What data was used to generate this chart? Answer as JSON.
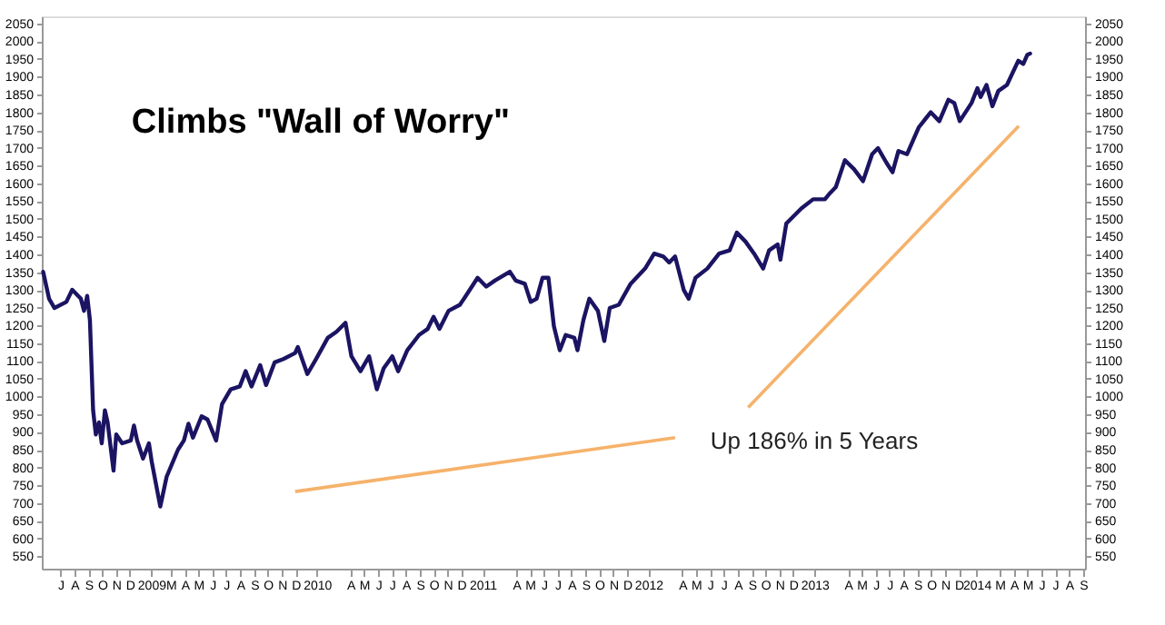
{
  "chart_data": {
    "type": "line",
    "title": "Climbs \"Wall of Worry\"",
    "xlim": [
      "2008-06-05",
      "2014-09-20"
    ],
    "xticks": [
      {
        "value": "2008-07-16",
        "label": "J"
      },
      {
        "value": "2008-08-16",
        "label": "A"
      },
      {
        "value": "2008-09-16",
        "label": "S"
      },
      {
        "value": "2008-10-16",
        "label": "O"
      },
      {
        "value": "2008-11-16",
        "label": "N"
      },
      {
        "value": "2008-12-16",
        "label": "D"
      },
      {
        "value": "2009-02-01",
        "label": "2009"
      },
      {
        "value": "2009-03-16",
        "label": "M"
      },
      {
        "value": "2009-04-16",
        "label": "A"
      },
      {
        "value": "2009-05-16",
        "label": "M"
      },
      {
        "value": "2009-06-16",
        "label": "J"
      },
      {
        "value": "2009-07-16",
        "label": "J"
      },
      {
        "value": "2009-08-16",
        "label": "A"
      },
      {
        "value": "2009-09-16",
        "label": "S"
      },
      {
        "value": "2009-10-16",
        "label": "O"
      },
      {
        "value": "2009-11-16",
        "label": "N"
      },
      {
        "value": "2009-12-16",
        "label": "D"
      },
      {
        "value": "2010-02-01",
        "label": "2010"
      },
      {
        "value": "2010-04-16",
        "label": "A"
      },
      {
        "value": "2010-05-16",
        "label": "M"
      },
      {
        "value": "2010-06-16",
        "label": "J"
      },
      {
        "value": "2010-07-16",
        "label": "J"
      },
      {
        "value": "2010-08-16",
        "label": "A"
      },
      {
        "value": "2010-09-16",
        "label": "S"
      },
      {
        "value": "2010-10-16",
        "label": "O"
      },
      {
        "value": "2010-11-16",
        "label": "N"
      },
      {
        "value": "2010-12-16",
        "label": "D"
      },
      {
        "value": "2011-02-01",
        "label": "2011"
      },
      {
        "value": "2011-04-16",
        "label": "A"
      },
      {
        "value": "2011-05-16",
        "label": "M"
      },
      {
        "value": "2011-06-16",
        "label": "J"
      },
      {
        "value": "2011-07-16",
        "label": "J"
      },
      {
        "value": "2011-08-16",
        "label": "A"
      },
      {
        "value": "2011-09-16",
        "label": "S"
      },
      {
        "value": "2011-10-16",
        "label": "O"
      },
      {
        "value": "2011-11-16",
        "label": "N"
      },
      {
        "value": "2011-12-16",
        "label": "D"
      },
      {
        "value": "2012-02-01",
        "label": "2012"
      },
      {
        "value": "2012-04-16",
        "label": "A"
      },
      {
        "value": "2012-05-16",
        "label": "M"
      },
      {
        "value": "2012-06-16",
        "label": "J"
      },
      {
        "value": "2012-07-16",
        "label": "J"
      },
      {
        "value": "2012-08-16",
        "label": "A"
      },
      {
        "value": "2012-09-16",
        "label": "S"
      },
      {
        "value": "2012-10-16",
        "label": "O"
      },
      {
        "value": "2012-11-16",
        "label": "N"
      },
      {
        "value": "2012-12-16",
        "label": "D"
      },
      {
        "value": "2013-02-01",
        "label": "2013"
      },
      {
        "value": "2013-04-16",
        "label": "A"
      },
      {
        "value": "2013-05-16",
        "label": "M"
      },
      {
        "value": "2013-06-16",
        "label": "J"
      },
      {
        "value": "2013-07-16",
        "label": "J"
      },
      {
        "value": "2013-08-16",
        "label": "A"
      },
      {
        "value": "2013-09-16",
        "label": "S"
      },
      {
        "value": "2013-10-16",
        "label": "O"
      },
      {
        "value": "2013-11-16",
        "label": "N"
      },
      {
        "value": "2013-12-16",
        "label": "D"
      },
      {
        "value": "2014-01-24",
        "label": "2014"
      },
      {
        "value": "2014-03-16",
        "label": "M"
      },
      {
        "value": "2014-04-16",
        "label": "A"
      },
      {
        "value": "2014-05-16",
        "label": "M"
      },
      {
        "value": "2014-06-16",
        "label": "J"
      },
      {
        "value": "2014-07-16",
        "label": "J"
      },
      {
        "value": "2014-08-16",
        "label": "A"
      },
      {
        "value": "2014-09-16",
        "label": "S"
      }
    ],
    "ylim": [
      515,
      2070
    ],
    "yticks": [
      550,
      600,
      650,
      700,
      750,
      800,
      850,
      900,
      950,
      1000,
      1050,
      1100,
      1150,
      1200,
      1250,
      1300,
      1350,
      1400,
      1450,
      1500,
      1550,
      1600,
      1650,
      1700,
      1750,
      1800,
      1850,
      1900,
      1950,
      2000,
      2050
    ],
    "y2lim": [
      515,
      2070
    ],
    "y2ticks": [
      550,
      600,
      650,
      700,
      750,
      800,
      850,
      900,
      950,
      1000,
      1050,
      1100,
      1150,
      1200,
      1250,
      1300,
      1350,
      1400,
      1450,
      1500,
      1550,
      1600,
      1650,
      1700,
      1750,
      1800,
      1850,
      1900,
      1950,
      2000,
      2050
    ],
    "annotations": [
      "Up 186% in 5 Years"
    ],
    "series": [
      {
        "color": "#1b1462",
        "x": [
          "2008-06-08",
          "2008-06-21",
          "2008-07-03",
          "2008-07-29",
          "2008-08-11",
          "2008-08-30",
          "2008-09-06",
          "2008-09-13",
          "2008-09-19",
          "2008-09-26",
          "2008-10-02",
          "2008-10-09",
          "2008-10-15",
          "2008-10-22",
          "2008-10-28",
          "2008-11-10",
          "2008-11-16",
          "2008-11-29",
          "2008-12-18",
          "2008-12-25",
          "2009-01-01",
          "2009-01-14",
          "2009-01-27",
          "2009-02-02",
          "2009-02-21",
          "2009-03-07",
          "2009-04-01",
          "2009-04-14",
          "2009-04-24",
          "2009-05-04",
          "2009-05-23",
          "2009-06-05",
          "2009-06-24",
          "2009-07-07",
          "2009-07-26",
          "2009-08-15",
          "2009-08-28",
          "2009-09-10",
          "2009-09-29",
          "2009-10-12",
          "2009-10-31",
          "2009-11-19",
          "2009-12-15",
          "2009-12-21",
          "2010-01-11",
          "2010-01-30",
          "2010-02-25",
          "2010-03-16",
          "2010-04-05",
          "2010-04-18",
          "2010-05-08",
          "2010-05-27",
          "2010-06-13",
          "2010-06-28",
          "2010-07-17",
          "2010-07-30",
          "2010-08-19",
          "2010-09-14",
          "2010-10-03",
          "2010-10-16",
          "2010-10-29",
          "2010-11-18",
          "2010-12-13",
          "2010-12-26",
          "2011-01-21",
          "2011-02-09",
          "2011-02-28",
          "2011-04-02",
          "2011-04-15",
          "2011-05-05",
          "2011-05-18",
          "2011-05-31",
          "2011-06-13",
          "2011-06-26",
          "2011-07-08",
          "2011-07-21",
          "2011-08-03",
          "2011-08-22",
          "2011-08-29",
          "2011-09-11",
          "2011-09-24",
          "2011-10-13",
          "2011-10-27",
          "2011-11-08",
          "2011-11-28",
          "2011-12-24",
          "2012-01-25",
          "2012-02-14",
          "2012-03-05",
          "2012-03-18",
          "2012-03-31",
          "2012-04-19",
          "2012-04-30",
          "2012-05-15",
          "2012-06-10",
          "2012-07-06",
          "2012-07-29",
          "2012-08-14",
          "2012-09-02",
          "2012-09-21",
          "2012-10-11",
          "2012-10-24",
          "2012-11-12",
          "2012-11-18",
          "2012-12-01",
          "2013-01-03",
          "2013-01-29",
          "2013-02-24",
          "2013-03-07",
          "2013-03-20",
          "2013-04-09",
          "2013-04-29",
          "2013-05-19",
          "2013-06-08",
          "2013-06-21",
          "2013-07-10",
          "2013-07-23",
          "2013-08-05",
          "2013-08-24",
          "2013-09-19",
          "2013-10-15",
          "2013-11-03",
          "2013-11-23",
          "2013-12-06",
          "2013-12-18",
          "2014-01-13",
          "2014-01-26",
          "2014-02-02",
          "2014-02-15",
          "2014-02-28",
          "2014-03-13",
          "2014-04-01",
          "2014-04-26",
          "2014-05-07",
          "2014-05-16",
          "2014-05-22"
        ],
        "values": [
          1351,
          1275,
          1249,
          1266,
          1300,
          1275,
          1241,
          1283,
          1215,
          961,
          893,
          927,
          868,
          961,
          927,
          791,
          893,
          868,
          876,
          918,
          876,
          825,
          868,
          817,
          690,
          774,
          850,
          876,
          923,
          884,
          944,
          935,
          876,
          978,
          1020,
          1028,
          1071,
          1028,
          1088,
          1032,
          1096,
          1105,
          1122,
          1139,
          1063,
          1105,
          1165,
          1182,
          1207,
          1113,
          1071,
          1113,
          1020,
          1079,
          1113,
          1071,
          1130,
          1173,
          1190,
          1224,
          1190,
          1241,
          1258,
          1283,
          1334,
          1309,
          1326,
          1351,
          1326,
          1317,
          1266,
          1275,
          1334,
          1334,
          1198,
          1130,
          1173,
          1165,
          1130,
          1215,
          1275,
          1241,
          1156,
          1249,
          1258,
          1317,
          1360,
          1402,
          1394,
          1377,
          1394,
          1300,
          1275,
          1334,
          1360,
          1402,
          1411,
          1461,
          1436,
          1402,
          1360,
          1411,
          1428,
          1385,
          1487,
          1529,
          1555,
          1555,
          1572,
          1589,
          1665,
          1640,
          1606,
          1682,
          1699,
          1657,
          1631,
          1691,
          1682,
          1758,
          1800,
          1775,
          1835,
          1826,
          1775,
          1826,
          1868,
          1843,
          1877,
          1817,
          1860,
          1877,
          1945,
          1936,
          1962,
          1965
        ]
      },
      {
        "color": "#f6b26b",
        "axis": "y2",
        "x": [
          "2009-12-15",
          "2012-03-31"
        ],
        "values": [
          732,
          884
        ]
      },
      {
        "color": "#f6b26b",
        "axis": "y2",
        "x": [
          "2012-09-08",
          "2014-04-27"
        ],
        "values": [
          969,
          1761
        ]
      }
    ]
  }
}
